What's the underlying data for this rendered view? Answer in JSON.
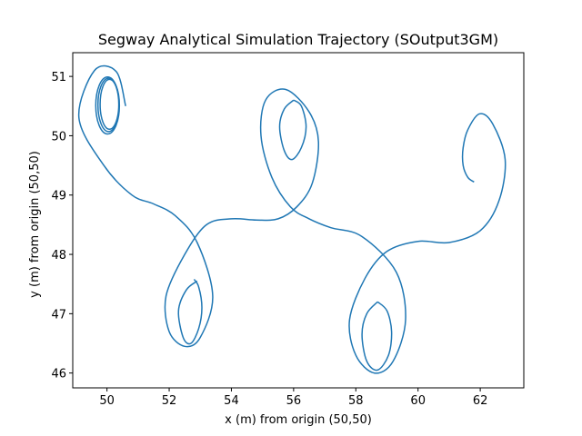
{
  "chart_data": {
    "type": "line",
    "title": "Segway Analytical Simulation Trajectory (SOutput3GM)",
    "xlabel": "x (m) from origin (50,50)",
    "ylabel": "y (m) from origin (50,50)",
    "xlim": [
      48.9,
      63.4
    ],
    "ylim": [
      45.75,
      51.4
    ],
    "xticks": [
      50,
      52,
      54,
      56,
      58,
      60,
      62
    ],
    "yticks": [
      46,
      47,
      48,
      49,
      50,
      51
    ],
    "grid": false,
    "line_color": "#1f77b4",
    "series": [
      {
        "points": [
          [
            61.8,
            49.22
          ],
          [
            61.6,
            49.3
          ],
          [
            61.45,
            49.5
          ],
          [
            61.45,
            49.8
          ],
          [
            61.6,
            50.1
          ],
          [
            61.98,
            50.37
          ],
          [
            62.4,
            50.2
          ],
          [
            62.8,
            49.6
          ],
          [
            62.6,
            48.9
          ],
          [
            62.0,
            48.4
          ],
          [
            61.0,
            48.2
          ],
          [
            60.0,
            48.22
          ],
          [
            59.0,
            48.05
          ],
          [
            58.3,
            47.6
          ],
          [
            57.8,
            46.9
          ],
          [
            58.0,
            46.3
          ],
          [
            58.6,
            46.0
          ],
          [
            59.2,
            46.2
          ],
          [
            59.6,
            46.9
          ],
          [
            59.3,
            47.7
          ],
          [
            58.2,
            48.3
          ],
          [
            57.2,
            48.45
          ],
          [
            56.5,
            48.6
          ],
          [
            55.9,
            48.8
          ],
          [
            55.3,
            49.3
          ],
          [
            54.95,
            50.0
          ],
          [
            55.1,
            50.6
          ],
          [
            55.75,
            50.78
          ],
          [
            56.5,
            50.4
          ],
          [
            56.8,
            49.9
          ],
          [
            56.6,
            49.2
          ],
          [
            56.1,
            48.8
          ],
          [
            55.5,
            48.6
          ],
          [
            54.8,
            48.58
          ],
          [
            54.0,
            48.6
          ],
          [
            53.2,
            48.5
          ],
          [
            52.5,
            48.0
          ],
          [
            51.9,
            47.3
          ],
          [
            52.0,
            46.7
          ],
          [
            52.5,
            46.45
          ],
          [
            53.0,
            46.6
          ],
          [
            53.4,
            47.3
          ],
          [
            52.9,
            48.2
          ],
          [
            52.2,
            48.65
          ],
          [
            51.5,
            48.85
          ],
          [
            50.8,
            49.0
          ],
          [
            49.9,
            49.5
          ],
          [
            49.1,
            50.3
          ],
          [
            49.6,
            51.1
          ],
          [
            50.3,
            51.08
          ],
          [
            50.6,
            50.5
          ]
        ]
      },
      {
        "points": [
          [
            52.9,
            47.55
          ],
          [
            52.55,
            47.4
          ],
          [
            52.3,
            47.05
          ],
          [
            52.45,
            46.6
          ],
          [
            52.7,
            46.5
          ],
          [
            52.95,
            46.75
          ],
          [
            53.05,
            47.1
          ],
          [
            52.95,
            47.45
          ],
          [
            52.8,
            47.58
          ]
        ]
      },
      {
        "points": [
          [
            56.0,
            50.6
          ],
          [
            55.7,
            50.45
          ],
          [
            55.55,
            50.15
          ],
          [
            55.7,
            49.75
          ],
          [
            55.95,
            49.6
          ],
          [
            56.25,
            49.8
          ],
          [
            56.4,
            50.15
          ],
          [
            56.25,
            50.5
          ],
          [
            56.0,
            50.6
          ]
        ]
      },
      {
        "points": [
          [
            58.7,
            47.2
          ],
          [
            58.35,
            47.0
          ],
          [
            58.2,
            46.65
          ],
          [
            58.35,
            46.2
          ],
          [
            58.7,
            46.05
          ],
          [
            59.05,
            46.3
          ],
          [
            59.15,
            46.7
          ],
          [
            59.0,
            47.05
          ],
          [
            58.7,
            47.2
          ]
        ]
      }
    ]
  }
}
